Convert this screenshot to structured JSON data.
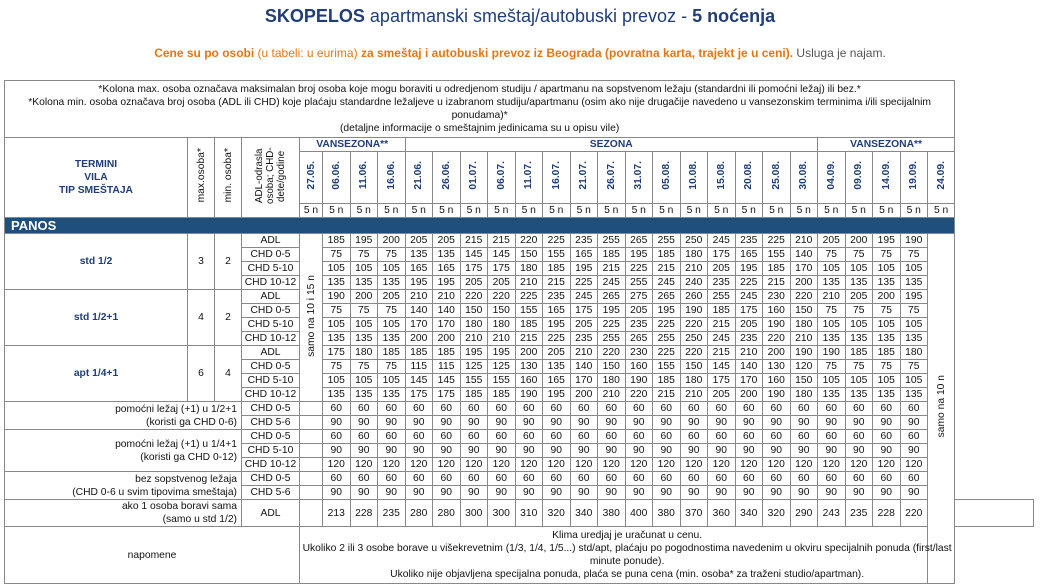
{
  "title": {
    "destination": "SKOPELOS",
    "desc": "apartmanski smeštaj/autobuski prevoz -",
    "nights": "5 noćenja"
  },
  "subtitle": {
    "p1": "Cene su po osobi",
    "p2": "(u tabeli: u eurima)",
    "p3": "za smeštaj i autobuski prevoz iz Beograda (povratna karta, trajekt je u ceni).",
    "p4": "Usluga je najam."
  },
  "notes_top": [
    "*Kolona max. osoba označava maksimalan broj osoba koje mogu boraviti u odredjenom studiju / apartmanu na sopstvenom ležaju (standardni ili pomoćni ležaj) ili bez.*",
    "*Kolona min. osoba označava broj osoba (ADL ili CHD) koje plaćaju standardne ležaljeve u izabranom studiju/apartmanu (osim ako nije drugačije navedeno u vansezonskim terminima i/ili specijalnim ponudama)*",
    "(detaljne informacije o smeštajnim jedinicama su u opisu vile)"
  ],
  "header": {
    "termini": "TERMINI",
    "vila": "VILA",
    "tip": "TIP SMEŠTAJA",
    "max": "max.osoba*",
    "min": "min. osoba*",
    "adl_chd": "ADL-odrasla osoba; CHD-dete/godine",
    "seasons": [
      "VANSEZONA**",
      "SEZONA",
      "VANSEZONA**"
    ],
    "dates": [
      "27.05.",
      "06.06.",
      "11.06.",
      "16.06.",
      "21.06.",
      "26.06.",
      "01.07.",
      "06.07.",
      "11.07.",
      "16.07.",
      "21.07.",
      "26.07.",
      "31.07.",
      "05.08.",
      "10.08.",
      "15.08.",
      "20.08.",
      "25.08.",
      "30.08.",
      "04.09.",
      "09.09.",
      "14.09.",
      "19.09.",
      "24.09."
    ],
    "nights_label": "5 n"
  },
  "section": "PANOS",
  "side_note_left": "samo na 10 i 15 n",
  "side_note_right": "samo na 10 n",
  "groups": [
    {
      "name": "std 1/2",
      "max": "3",
      "min": "2",
      "rows": [
        {
          "label": "ADL",
          "v": [
            "185",
            "195",
            "200",
            "205",
            "205",
            "215",
            "215",
            "220",
            "225",
            "235",
            "255",
            "265",
            "255",
            "250",
            "245",
            "235",
            "225",
            "210",
            "205",
            "200",
            "195",
            "190"
          ]
        },
        {
          "label": "CHD 0-5",
          "v": [
            "75",
            "75",
            "75",
            "135",
            "135",
            "145",
            "145",
            "150",
            "155",
            "165",
            "185",
            "195",
            "185",
            "180",
            "175",
            "165",
            "155",
            "140",
            "75",
            "75",
            "75",
            "75"
          ]
        },
        {
          "label": "CHD 5-10",
          "v": [
            "105",
            "105",
            "105",
            "165",
            "165",
            "175",
            "175",
            "180",
            "185",
            "195",
            "215",
            "225",
            "215",
            "210",
            "205",
            "195",
            "185",
            "170",
            "105",
            "105",
            "105",
            "105"
          ]
        },
        {
          "label": "CHD 10-12",
          "v": [
            "135",
            "135",
            "135",
            "195",
            "195",
            "205",
            "205",
            "210",
            "215",
            "225",
            "245",
            "255",
            "245",
            "240",
            "235",
            "225",
            "215",
            "200",
            "135",
            "135",
            "135",
            "135"
          ]
        }
      ]
    },
    {
      "name": "std 1/2+1",
      "max": "4",
      "min": "2",
      "rows": [
        {
          "label": "ADL",
          "v": [
            "190",
            "200",
            "205",
            "210",
            "210",
            "220",
            "220",
            "225",
            "235",
            "245",
            "265",
            "275",
            "265",
            "260",
            "255",
            "245",
            "230",
            "220",
            "210",
            "205",
            "200",
            "195"
          ]
        },
        {
          "label": "CHD 0-5",
          "v": [
            "75",
            "75",
            "75",
            "140",
            "140",
            "150",
            "150",
            "155",
            "165",
            "175",
            "195",
            "205",
            "195",
            "190",
            "185",
            "175",
            "160",
            "150",
            "75",
            "75",
            "75",
            "75"
          ]
        },
        {
          "label": "CHD 5-10",
          "v": [
            "105",
            "105",
            "105",
            "170",
            "170",
            "180",
            "180",
            "185",
            "195",
            "205",
            "225",
            "235",
            "225",
            "220",
            "215",
            "205",
            "190",
            "180",
            "105",
            "105",
            "105",
            "105"
          ]
        },
        {
          "label": "CHD 10-12",
          "v": [
            "135",
            "135",
            "135",
            "200",
            "200",
            "210",
            "210",
            "215",
            "225",
            "235",
            "255",
            "265",
            "255",
            "250",
            "245",
            "235",
            "220",
            "210",
            "135",
            "135",
            "135",
            "135"
          ]
        }
      ]
    },
    {
      "name": "apt 1/4+1",
      "max": "6",
      "min": "4",
      "rows": [
        {
          "label": "ADL",
          "v": [
            "175",
            "180",
            "185",
            "185",
            "185",
            "195",
            "195",
            "200",
            "205",
            "210",
            "220",
            "230",
            "225",
            "220",
            "215",
            "210",
            "200",
            "190",
            "190",
            "185",
            "185",
            "180"
          ]
        },
        {
          "label": "CHD 0-5",
          "v": [
            "75",
            "75",
            "75",
            "115",
            "115",
            "125",
            "125",
            "130",
            "135",
            "140",
            "150",
            "160",
            "155",
            "150",
            "145",
            "140",
            "130",
            "120",
            "75",
            "75",
            "75",
            "75"
          ]
        },
        {
          "label": "CHD 5-10",
          "v": [
            "105",
            "105",
            "105",
            "145",
            "145",
            "155",
            "155",
            "160",
            "165",
            "170",
            "180",
            "190",
            "185",
            "180",
            "175",
            "170",
            "160",
            "150",
            "105",
            "105",
            "105",
            "105"
          ]
        },
        {
          "label": "CHD 10-12",
          "v": [
            "135",
            "135",
            "135",
            "175",
            "175",
            "185",
            "185",
            "190",
            "195",
            "200",
            "210",
            "220",
            "215",
            "210",
            "205",
            "200",
            "190",
            "180",
            "135",
            "135",
            "135",
            "135"
          ]
        }
      ]
    }
  ],
  "extras": [
    {
      "name": [
        "pomoćni ležaj (+1) u 1/2+1",
        "(koristi ga CHD 0-6)"
      ],
      "rows": [
        {
          "label": "CHD 0-5",
          "v": [
            "60",
            "60",
            "60",
            "60",
            "60",
            "60",
            "60",
            "60",
            "60",
            "60",
            "60",
            "60",
            "60",
            "60",
            "60",
            "60",
            "60",
            "60",
            "60",
            "60",
            "60",
            "60"
          ]
        },
        {
          "label": "CHD 5-6",
          "v": [
            "90",
            "90",
            "90",
            "90",
            "90",
            "90",
            "90",
            "90",
            "90",
            "90",
            "90",
            "90",
            "90",
            "90",
            "90",
            "90",
            "90",
            "90",
            "90",
            "90",
            "90",
            "90"
          ]
        }
      ]
    },
    {
      "name": [
        "pomoćni ležaj (+1) u 1/4+1",
        "(koristi ga CHD 0-12)"
      ],
      "rows": [
        {
          "label": "CHD 0-5",
          "v": [
            "60",
            "60",
            "60",
            "60",
            "60",
            "60",
            "60",
            "60",
            "60",
            "60",
            "60",
            "60",
            "60",
            "60",
            "60",
            "60",
            "60",
            "60",
            "60",
            "60",
            "60",
            "60"
          ]
        },
        {
          "label": "CHD 5-10",
          "v": [
            "90",
            "90",
            "90",
            "90",
            "90",
            "90",
            "90",
            "90",
            "90",
            "90",
            "90",
            "90",
            "90",
            "90",
            "90",
            "90",
            "90",
            "90",
            "90",
            "90",
            "90",
            "90"
          ]
        },
        {
          "label": "CHD 10-12",
          "v": [
            "120",
            "120",
            "120",
            "120",
            "120",
            "120",
            "120",
            "120",
            "120",
            "120",
            "120",
            "120",
            "120",
            "120",
            "120",
            "120",
            "120",
            "120",
            "120",
            "120",
            "120",
            "120"
          ]
        }
      ]
    },
    {
      "name": [
        "bez sopstvenog ležaja",
        "(CHD 0-6 u svim tipovima smeštaja)"
      ],
      "rows": [
        {
          "label": "CHD 0-5",
          "v": [
            "60",
            "60",
            "60",
            "60",
            "60",
            "60",
            "60",
            "60",
            "60",
            "60",
            "60",
            "60",
            "60",
            "60",
            "60",
            "60",
            "60",
            "60",
            "60",
            "60",
            "60",
            "60"
          ]
        },
        {
          "label": "CHD 5-6",
          "v": [
            "90",
            "90",
            "90",
            "90",
            "90",
            "90",
            "90",
            "90",
            "90",
            "90",
            "90",
            "90",
            "90",
            "90",
            "90",
            "90",
            "90",
            "90",
            "90",
            "90",
            "90",
            "90"
          ]
        }
      ]
    },
    {
      "name": [
        "ako 1 osoba boravi sama",
        "(samo u std 1/2)"
      ],
      "rows": [
        {
          "label": "ADL",
          "v": [
            "213",
            "228",
            "235",
            "280",
            "280",
            "300",
            "300",
            "310",
            "320",
            "340",
            "380",
            "400",
            "380",
            "370",
            "360",
            "340",
            "320",
            "290",
            "243",
            "235",
            "228",
            "220"
          ]
        }
      ]
    }
  ],
  "napomene_label": "napomene",
  "napomene": [
    "Klima uredjaj je uračunat u cenu.",
    "Ukoliko 2 ili 3 osobe borave u višekrevetnim (1/3, 1/4, 1/5...) std/apt, plaćaju po pogodnostima navedenim u okviru specijalnih ponuda (first/last minute ponude).",
    "Ukoliko nije objavljena specijalna ponuda, plaća se puna cena (min. osoba* za traženi studio/apartman)."
  ]
}
